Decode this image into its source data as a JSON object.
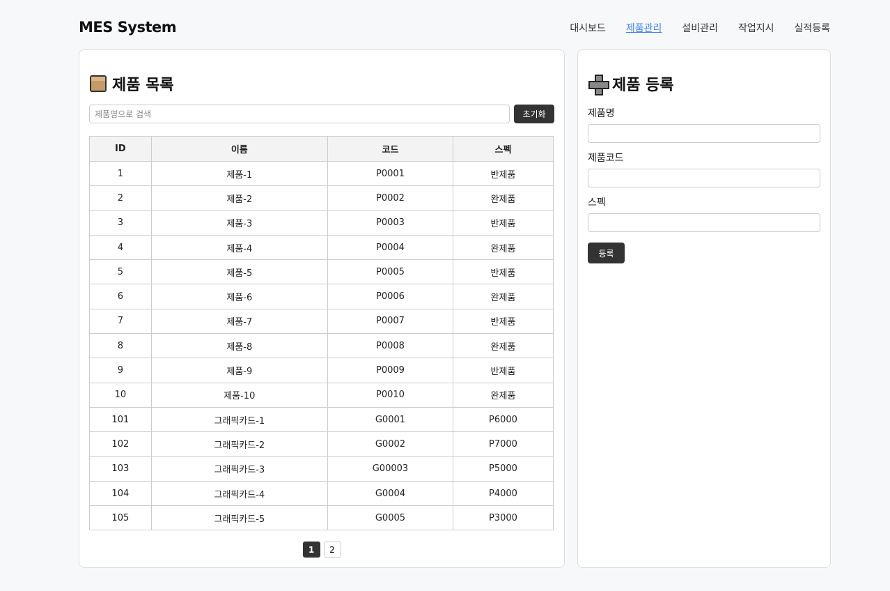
{
  "header": {
    "logo": "MES System",
    "nav": [
      {
        "label": "대시보드",
        "active": false
      },
      {
        "label": "제품관리",
        "active": true
      },
      {
        "label": "설비관리",
        "active": false
      },
      {
        "label": "작업지시",
        "active": false
      },
      {
        "label": "실적등록",
        "active": false
      }
    ]
  },
  "list": {
    "title": "제품 목록",
    "icon": "package-icon",
    "search_placeholder": "제품명으로 검색",
    "search_value": "",
    "reset_label": "초기화",
    "columns": [
      "ID",
      "이름",
      "코드",
      "스펙"
    ],
    "rows": [
      [
        "1",
        "제품-1",
        "P0001",
        "반제품"
      ],
      [
        "2",
        "제품-2",
        "P0002",
        "완제품"
      ],
      [
        "3",
        "제품-3",
        "P0003",
        "반제품"
      ],
      [
        "4",
        "제품-4",
        "P0004",
        "완제품"
      ],
      [
        "5",
        "제품-5",
        "P0005",
        "반제품"
      ],
      [
        "6",
        "제품-6",
        "P0006",
        "완제품"
      ],
      [
        "7",
        "제품-7",
        "P0007",
        "반제품"
      ],
      [
        "8",
        "제품-8",
        "P0008",
        "완제품"
      ],
      [
        "9",
        "제품-9",
        "P0009",
        "반제품"
      ],
      [
        "10",
        "제품-10",
        "P0010",
        "완제품"
      ],
      [
        "101",
        "그래픽카드-1",
        "G0001",
        "P6000"
      ],
      [
        "102",
        "그래픽카드-2",
        "G0002",
        "P7000"
      ],
      [
        "103",
        "그래픽카드-3",
        "G00003",
        "P5000"
      ],
      [
        "104",
        "그래픽카드-4",
        "G0004",
        "P4000"
      ],
      [
        "105",
        "그래픽카드-5",
        "G0005",
        "P3000"
      ]
    ],
    "pages": [
      "1",
      "2"
    ],
    "current_page": "1"
  },
  "form": {
    "title": "제품 등록",
    "icon": "plus-icon",
    "fields": [
      {
        "label": "제품명",
        "value": ""
      },
      {
        "label": "제품코드",
        "value": ""
      },
      {
        "label": "스펙",
        "value": ""
      }
    ],
    "submit_label": "등록"
  },
  "colors": {
    "accent": "#3b82f6",
    "button": "#333333",
    "background": "#f7f8fa"
  }
}
